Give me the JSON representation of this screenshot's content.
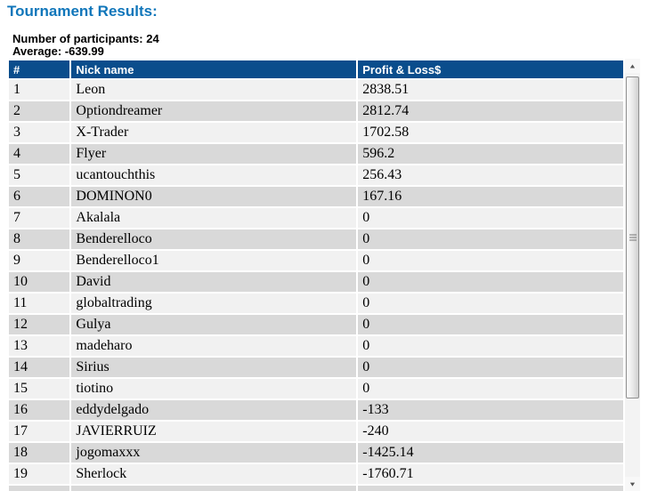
{
  "page": {
    "title": "Tournament Results:",
    "participants_line": "Number of participants: 24",
    "average_line": "Average: -639.99"
  },
  "table": {
    "headers": [
      "#",
      "Nick name",
      "Profit & Loss$"
    ],
    "rows": [
      {
        "rank": "1",
        "nick": "Leon",
        "pnl": "2838.51"
      },
      {
        "rank": "2",
        "nick": "Optiondreamer",
        "pnl": "2812.74"
      },
      {
        "rank": "3",
        "nick": "X-Trader",
        "pnl": "1702.58"
      },
      {
        "rank": "4",
        "nick": "Flyer",
        "pnl": "596.2"
      },
      {
        "rank": "5",
        "nick": "ucantouchthis",
        "pnl": "256.43"
      },
      {
        "rank": "6",
        "nick": "DOMINON0",
        "pnl": "167.16"
      },
      {
        "rank": "7",
        "nick": "Akalala",
        "pnl": "0"
      },
      {
        "rank": "8",
        "nick": "Benderelloco",
        "pnl": "0"
      },
      {
        "rank": "9",
        "nick": "Benderelloco1",
        "pnl": "0"
      },
      {
        "rank": "10",
        "nick": "David",
        "pnl": "0"
      },
      {
        "rank": "11",
        "nick": "globaltrading",
        "pnl": "0"
      },
      {
        "rank": "12",
        "nick": "Gulya",
        "pnl": "0"
      },
      {
        "rank": "13",
        "nick": "madeharo",
        "pnl": "0"
      },
      {
        "rank": "14",
        "nick": "Sirius",
        "pnl": "0"
      },
      {
        "rank": "15",
        "nick": "tiotino",
        "pnl": "0"
      },
      {
        "rank": "16",
        "nick": "eddydelgado",
        "pnl": "-133"
      },
      {
        "rank": "17",
        "nick": "JAVIERRUIZ",
        "pnl": "-240"
      },
      {
        "rank": "18",
        "nick": "jogomaxxx",
        "pnl": "-1425.14"
      },
      {
        "rank": "19",
        "nick": "Sherlock",
        "pnl": "-1760.71"
      }
    ]
  },
  "scrollbar": {
    "up_icon": "▲",
    "down_icon": "▼"
  },
  "colors": {
    "title_blue": "#1076ba",
    "header_bg": "#0a4d8c",
    "row_odd": "#f1f1f1",
    "row_even": "#d9d9d9"
  }
}
